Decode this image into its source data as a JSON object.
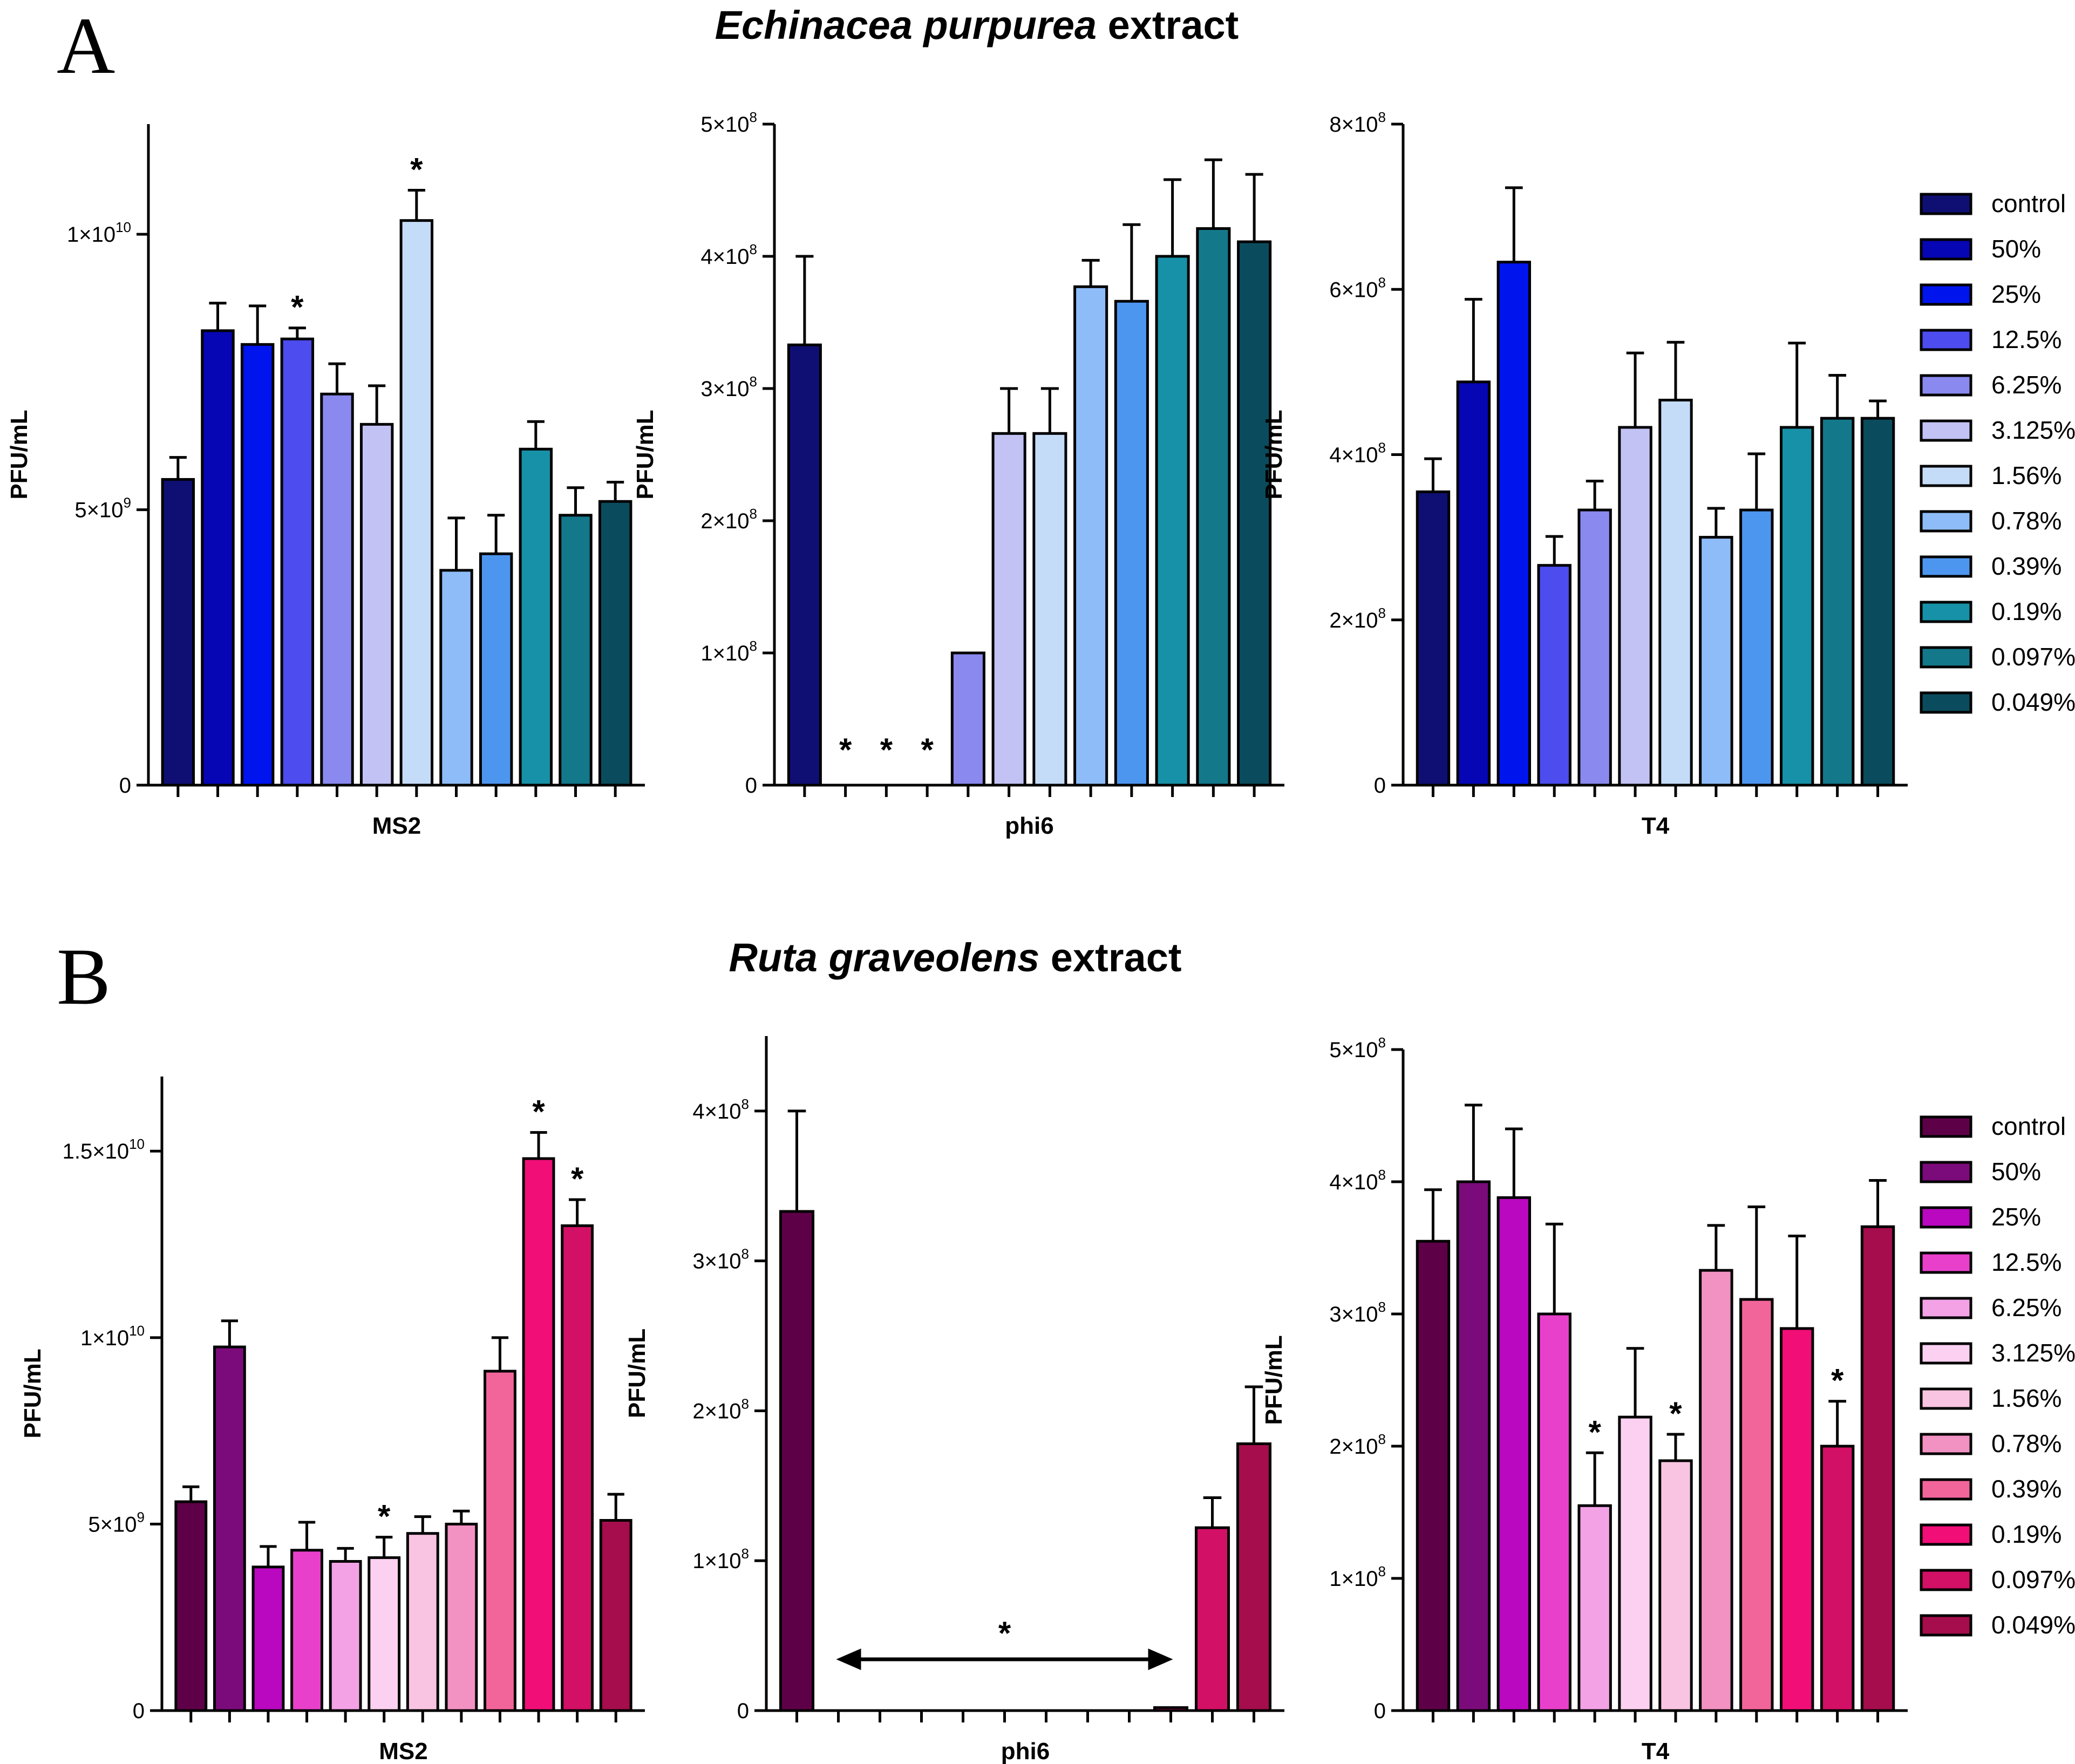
{
  "panels": [
    {
      "letter": "A",
      "title_italic": "Echinacea purpurea",
      "title_rest": " extract"
    },
    {
      "letter": "B",
      "title_italic": "Ruta graveolens",
      "title_rest": " extract"
    }
  ],
  "legend_labels": [
    "control",
    "50%",
    "25%",
    "12.5%",
    "6.25%",
    "3.125%",
    "1.56%",
    "0.78%",
    "0.39%",
    "0.19%",
    "0.097%",
    "0.049%"
  ],
  "colors": {
    "blue_palette": [
      "#0f0f73",
      "#0606b4",
      "#0014ee",
      "#4c4cef",
      "#8a89ef",
      "#c2c2f5",
      "#c5dcf9",
      "#8ebcf8",
      "#4d96f0",
      "#1791a7",
      "#13788a",
      "#0a4c5d"
    ],
    "magenta_palette": [
      "#5e0048",
      "#7b0b7b",
      "#b908c0",
      "#e940cb",
      "#f3a2e6",
      "#fbd0f0",
      "#f9c4e1",
      "#f292c2",
      "#f2659b",
      "#f10e77",
      "#d21065",
      "#a50d4c"
    ]
  },
  "chart_data": [
    {
      "type": "bar",
      "panel": "A",
      "title": "MS2",
      "xlabel": "MS2",
      "ylabel": "PFU/mL",
      "ylim": [
        0,
        12000000000
      ],
      "yticks": [
        {
          "value": 0,
          "mant": "0",
          "exp": ""
        },
        {
          "value": 5000000000,
          "mant": "5×10",
          "exp": "9"
        },
        {
          "value": 10000000000,
          "mant": "1×10",
          "exp": "10"
        }
      ],
      "categories": [
        "control",
        "50%",
        "25%",
        "12.5%",
        "6.25%",
        "3.125%",
        "1.56%",
        "0.78%",
        "0.39%",
        "0.19%",
        "0.097%",
        "0.049%"
      ],
      "values": [
        5550000000,
        8250000000,
        8000000000,
        8100000000,
        7100000000,
        6550000000,
        10250000000,
        3900000000,
        4200000000,
        6100000000,
        4900000000,
        5150000000
      ],
      "errors": [
        400000000,
        500000000,
        700000000,
        200000000,
        550000000,
        700000000,
        550000000,
        950000000,
        700000000,
        500000000,
        500000000,
        350000000
      ],
      "significance": [
        "",
        "",
        "",
        "*",
        "",
        "",
        "*",
        "",
        "",
        "",
        "",
        ""
      ],
      "palette": "blue_palette"
    },
    {
      "type": "bar",
      "panel": "A",
      "title": "phi6",
      "xlabel": "phi6",
      "ylabel": "PFU/mL",
      "ylim": [
        0,
        500000000
      ],
      "yticks": [
        {
          "value": 0,
          "mant": "0",
          "exp": ""
        },
        {
          "value": 100000000,
          "mant": "1×10",
          "exp": "8"
        },
        {
          "value": 200000000,
          "mant": "2×10",
          "exp": "8"
        },
        {
          "value": 300000000,
          "mant": "3×10",
          "exp": "8"
        },
        {
          "value": 400000000,
          "mant": "4×10",
          "exp": "8"
        },
        {
          "value": 500000000,
          "mant": "5×10",
          "exp": "8"
        }
      ],
      "categories": [
        "control",
        "50%",
        "25%",
        "12.5%",
        "6.25%",
        "3.125%",
        "1.56%",
        "0.78%",
        "0.39%",
        "0.19%",
        "0.097%",
        "0.049%"
      ],
      "values": [
        333000000,
        0,
        0,
        0,
        100000000,
        266000000,
        266000000,
        377000000,
        366000000,
        400000000,
        421000000,
        411000000
      ],
      "errors": [
        67000000,
        0,
        0,
        0,
        0,
        34000000,
        34000000,
        20000000,
        58000000,
        58000000,
        52000000,
        51000000
      ],
      "significance": [
        "",
        "*",
        "*",
        "*",
        "",
        "",
        "",
        "",
        "",
        "",
        "",
        ""
      ],
      "palette": "blue_palette"
    },
    {
      "type": "bar",
      "panel": "A",
      "title": "T4",
      "xlabel": "T4",
      "ylabel": "PFU/mL",
      "ylim": [
        0,
        800000000
      ],
      "yticks": [
        {
          "value": 0,
          "mant": "0",
          "exp": ""
        },
        {
          "value": 200000000,
          "mant": "2×10",
          "exp": "8"
        },
        {
          "value": 400000000,
          "mant": "4×10",
          "exp": "8"
        },
        {
          "value": 600000000,
          "mant": "6×10",
          "exp": "8"
        },
        {
          "value": 800000000,
          "mant": "8×10",
          "exp": "8"
        }
      ],
      "categories": [
        "control",
        "50%",
        "25%",
        "12.5%",
        "6.25%",
        "3.125%",
        "1.56%",
        "0.78%",
        "0.39%",
        "0.19%",
        "0.097%",
        "0.049%"
      ],
      "values": [
        355000000,
        488000000,
        633000000,
        266000000,
        333000000,
        433000000,
        466000000,
        300000000,
        333000000,
        433000000,
        444000000,
        444000000
      ],
      "errors": [
        40000000,
        100000000,
        90000000,
        35000000,
        35000000,
        90000000,
        70000000,
        35000000,
        68000000,
        102000000,
        52000000,
        21000000
      ],
      "significance": [
        "",
        "",
        "",
        "",
        "",
        "",
        "",
        "",
        "",
        "",
        "",
        ""
      ],
      "palette": "blue_palette"
    },
    {
      "type": "bar",
      "panel": "B",
      "title": "MS2",
      "xlabel": "MS2",
      "ylabel": "PFU/mL",
      "ylim": [
        0,
        17000000000
      ],
      "yticks": [
        {
          "value": 0,
          "mant": "0",
          "exp": ""
        },
        {
          "value": 5000000000,
          "mant": "5×10",
          "exp": "9"
        },
        {
          "value": 10000000000,
          "mant": "1×10",
          "exp": "10"
        },
        {
          "value": 15000000000,
          "mant": "1.5×10",
          "exp": "10"
        }
      ],
      "categories": [
        "control",
        "50%",
        "25%",
        "12.5%",
        "6.25%",
        "3.125%",
        "1.56%",
        "0.78%",
        "0.39%",
        "0.19%",
        "0.097%",
        "0.049%"
      ],
      "values": [
        5600000000,
        9750000000,
        3850000000,
        4300000000,
        4000000000,
        4100000000,
        4750000000,
        5000000000,
        9100000000,
        14800000000,
        13000000000,
        5100000000
      ],
      "errors": [
        400000000,
        700000000,
        550000000,
        750000000,
        350000000,
        550000000,
        450000000,
        350000000,
        900000000,
        700000000,
        700000000,
        700000000
      ],
      "significance": [
        "",
        "",
        "",
        "",
        "",
        "*",
        "",
        "",
        "",
        "*",
        "*",
        ""
      ],
      "palette": "magenta_palette"
    },
    {
      "type": "bar",
      "panel": "B",
      "title": "phi6",
      "xlabel": "phi6",
      "ylabel": "PFU/mL",
      "ylim": [
        0,
        450000000
      ],
      "yticks": [
        {
          "value": 0,
          "mant": "0",
          "exp": ""
        },
        {
          "value": 100000000,
          "mant": "1×10",
          "exp": "8"
        },
        {
          "value": 200000000,
          "mant": "2×10",
          "exp": "8"
        },
        {
          "value": 300000000,
          "mant": "3×10",
          "exp": "8"
        },
        {
          "value": 400000000,
          "mant": "4×10",
          "exp": "8"
        }
      ],
      "categories": [
        "control",
        "50%",
        "25%",
        "12.5%",
        "6.25%",
        "3.125%",
        "1.56%",
        "0.78%",
        "0.39%",
        "0.19%",
        "0.097%",
        "0.049%"
      ],
      "values": [
        333000000,
        0,
        0,
        0,
        0,
        0,
        0,
        0,
        0,
        2000000,
        122000000,
        178000000
      ],
      "errors": [
        67000000,
        0,
        0,
        0,
        0,
        0,
        0,
        0,
        0,
        0,
        20000000,
        38000000
      ],
      "significance": [
        "",
        "",
        "",
        "",
        "",
        "",
        "",
        "",
        "",
        "",
        "",
        ""
      ],
      "range_annotation": {
        "from_category": "50%",
        "to_category": "0.19%",
        "label": "*"
      },
      "palette": "magenta_palette"
    },
    {
      "type": "bar",
      "panel": "B",
      "title": "T4",
      "xlabel": "T4",
      "ylabel": "PFU/mL",
      "ylim": [
        0,
        500000000
      ],
      "yticks": [
        {
          "value": 0,
          "mant": "0",
          "exp": ""
        },
        {
          "value": 100000000,
          "mant": "1×10",
          "exp": "8"
        },
        {
          "value": 200000000,
          "mant": "2×10",
          "exp": "8"
        },
        {
          "value": 300000000,
          "mant": "3×10",
          "exp": "8"
        },
        {
          "value": 400000000,
          "mant": "4×10",
          "exp": "8"
        },
        {
          "value": 500000000,
          "mant": "5×10",
          "exp": "8"
        }
      ],
      "categories": [
        "control",
        "50%",
        "25%",
        "12.5%",
        "6.25%",
        "3.125%",
        "1.56%",
        "0.78%",
        "0.39%",
        "0.19%",
        "0.097%",
        "0.049%"
      ],
      "values": [
        355000000,
        400000000,
        388000000,
        300000000,
        155000000,
        222000000,
        189000000,
        333000000,
        311000000,
        289000000,
        200000000,
        366000000
      ],
      "errors": [
        39000000,
        58000000,
        52000000,
        68000000,
        40000000,
        52000000,
        20000000,
        34000000,
        70000000,
        70000000,
        34000000,
        35000000
      ],
      "significance": [
        "",
        "",
        "",
        "",
        "*",
        "",
        "*",
        "",
        "",
        "",
        "*",
        ""
      ],
      "palette": "magenta_palette"
    }
  ]
}
